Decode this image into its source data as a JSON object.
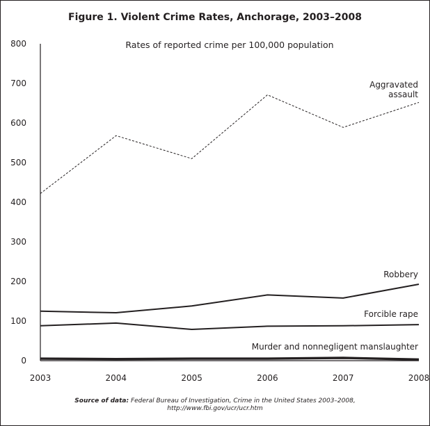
{
  "chart_data": {
    "type": "line",
    "title": "Figure 1. Violent Crime Rates, Anchorage, 2003–2008",
    "subtitle": "Rates of reported crime per 100,000 population",
    "x": [
      2003,
      2004,
      2005,
      2006,
      2007,
      2008
    ],
    "ylim": [
      0,
      800
    ],
    "yticks": [
      0,
      100,
      200,
      300,
      400,
      500,
      600,
      700,
      800
    ],
    "xticks": [
      2003,
      2004,
      2005,
      2006,
      2007,
      2008
    ],
    "grid": false,
    "series": [
      {
        "name": "Aggravated assault",
        "label_lines": [
          "Aggravated",
          "assault"
        ],
        "style": "dashed",
        "values": [
          422,
          568,
          510,
          671,
          589,
          652
        ]
      },
      {
        "name": "Robbery",
        "label_lines": [
          "Robbery"
        ],
        "style": "solid",
        "values": [
          125,
          121,
          138,
          166,
          158,
          193
        ]
      },
      {
        "name": "Forcible rape",
        "label_lines": [
          "Forcible rape"
        ],
        "style": "solid",
        "values": [
          88,
          95,
          79,
          87,
          88,
          91
        ]
      },
      {
        "name": "Murder and nonnegligent manslaughter",
        "label_lines": [
          "Murder and nonnegligent manslaughter"
        ],
        "style": "thick",
        "values": [
          5,
          4,
          5,
          5,
          7,
          3
        ]
      }
    ]
  },
  "source": {
    "label": "Source of data:",
    "text": " Federal Bureau of Investigation, Crime in the United States 2003–2008,",
    "url": "http://www.fbi.gov/ucr/ucr.htm"
  }
}
